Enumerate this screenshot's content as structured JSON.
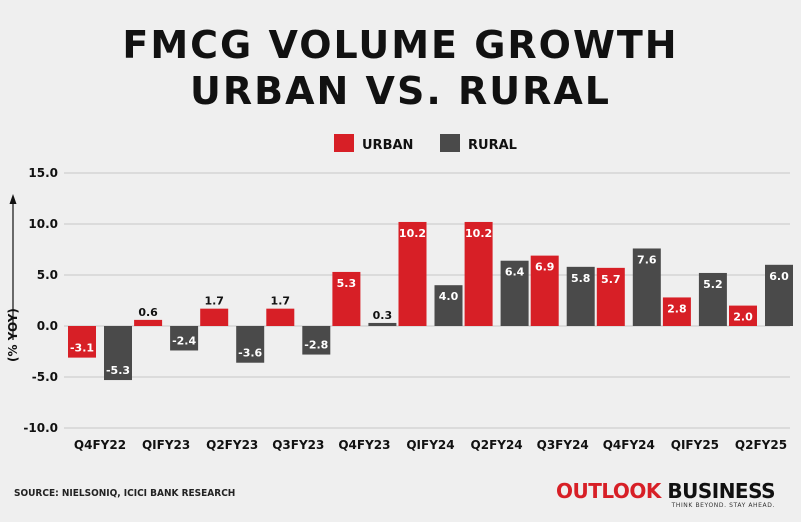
{
  "title_lines": [
    "FMCG VOLUME GROWTH",
    "URBAN VS. RURAL"
  ],
  "source": "SOURCE: NIELSONIQ, ICICI BANK RESEARCH",
  "brand": {
    "word1": "OUTLOOK",
    "word2": "BUSINESS",
    "tagline": "THINK BEYOND. STAY AHEAD."
  },
  "colors": {
    "urban": "#d71f26",
    "rural": "#4a4a4a",
    "background": "#efefef",
    "grid": "#c7c7c7"
  },
  "chart_data": {
    "type": "bar",
    "title": "FMCG VOLUME GROWTH URBAN VS. RURAL",
    "ylabel": "(% YOY)",
    "xlabel": "",
    "ylim": [
      -10,
      15
    ],
    "yticks": [
      "15.0",
      "10.0",
      "5.0",
      "0.0",
      "-5.0",
      "-10.0"
    ],
    "grid": true,
    "legend_position": "top-center",
    "categories": [
      "Q4FY22",
      "QIFY23",
      "Q2FY23",
      "Q3FY23",
      "Q4FY23",
      "QIFY24",
      "Q2FY24",
      "Q3FY24",
      "Q4FY24",
      "QIFY25",
      "Q2FY25"
    ],
    "series": [
      {
        "name": "URBAN",
        "color": "#d71f26",
        "values": [
          -3.1,
          0.6,
          1.7,
          1.7,
          5.3,
          10.2,
          10.2,
          6.9,
          5.7,
          2.8,
          2.0
        ],
        "labels": [
          "-3.1",
          "0.6",
          "1.7",
          "1.7",
          "5.3",
          "10.2",
          "10.2",
          "6.9",
          "5.7",
          "2.8",
          "2.0"
        ]
      },
      {
        "name": "RURAL",
        "color": "#4a4a4a",
        "values": [
          -5.3,
          -2.4,
          -3.6,
          -2.8,
          0.3,
          4.0,
          6.4,
          5.8,
          7.6,
          5.2,
          6.0
        ],
        "labels": [
          "-5.3",
          "-2.4",
          "-3.6",
          "-2.8",
          "0.3",
          "4.0",
          "6.4",
          "5.8",
          "7.6",
          "5.2",
          "6.0"
        ]
      }
    ]
  }
}
